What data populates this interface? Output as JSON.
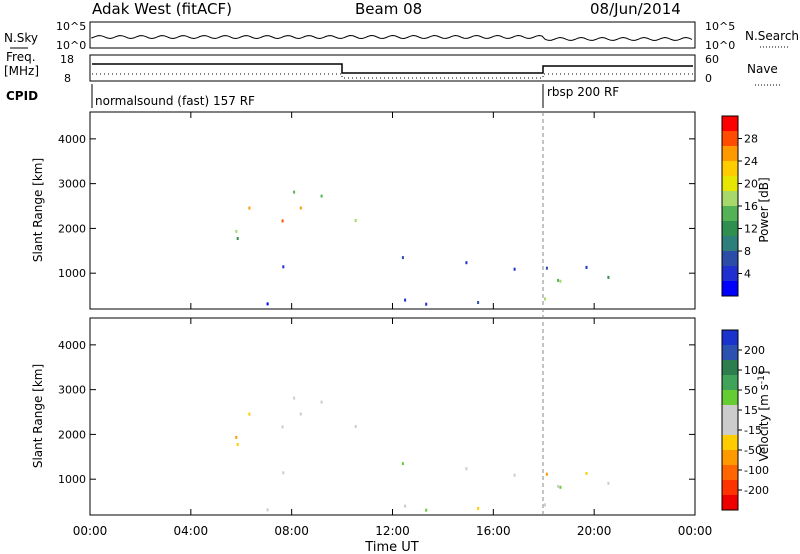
{
  "header": {
    "title": "Adak West (fitACF)",
    "beam": "Beam 08",
    "date": "08/Jun/2014"
  },
  "panels": {
    "noise": {
      "left_label": "N.Sky",
      "right_label": "N.Search",
      "left_ticks": [
        "10^5",
        "10^0"
      ],
      "right_ticks": [
        "10^5",
        "10^0"
      ]
    },
    "freq": {
      "left_label_1": "Freq.",
      "left_label_2": "[MHz]",
      "right_label": "Nave",
      "left_ticks": [
        "18",
        "8"
      ],
      "right_ticks": [
        "60",
        "0"
      ]
    },
    "cpid": {
      "label": "CPID",
      "segments": [
        "normalsound (fast) 157 RF",
        "rbsp 200 RF"
      ]
    }
  },
  "colorbars": {
    "power": {
      "label": "Power [dB]",
      "ticks": [
        "28",
        "24",
        "20",
        "16",
        "12",
        "8",
        "4"
      ],
      "colors": [
        "#ff0000",
        "#ff4c00",
        "#ff9900",
        "#ffcc00",
        "#e6e600",
        "#a6d96a",
        "#55b155",
        "#2f8f4f",
        "#2e7e7a",
        "#2b4da8",
        "#1f2fd0",
        "#0000ff"
      ]
    },
    "velocity": {
      "label": "Velocity [m s",
      "label_sup": "-1",
      "label_end": "]",
      "ticks": [
        "200",
        "100",
        "50",
        "15",
        "-15",
        "-50",
        "-100",
        "-200"
      ],
      "colors": [
        "#1a33cc",
        "#2b52b0",
        "#2e7d4f",
        "#3fa35a",
        "#66cc33",
        "#cccccc",
        "#cccccc",
        "#ffcc00",
        "#ff9900",
        "#ff6600",
        "#ff3300",
        "#ee0000"
      ]
    }
  },
  "chart_data": [
    {
      "type": "heatmap",
      "name": "power",
      "ylabel": "Slant Range [km]",
      "yticks": [
        1000,
        2000,
        3000,
        4000
      ],
      "ylim": [
        200,
        4600
      ],
      "xlim": [
        0,
        24
      ],
      "xticks": [
        "00:00",
        "04:00",
        "08:00",
        "12:00",
        "16:00",
        "20:00",
        "00:00"
      ],
      "xlabel": "Time UT"
    },
    {
      "type": "heatmap",
      "name": "velocity",
      "ylabel": "Slant Range [km]",
      "yticks": [
        1000,
        2000,
        3000,
        4000
      ],
      "ylim": [
        200,
        4600
      ],
      "xlim": [
        0,
        24
      ],
      "xticks": [
        "00:00",
        "04:00",
        "08:00",
        "12:00",
        "16:00",
        "20:00",
        "00:00"
      ],
      "xlabel": "Time UT"
    }
  ]
}
